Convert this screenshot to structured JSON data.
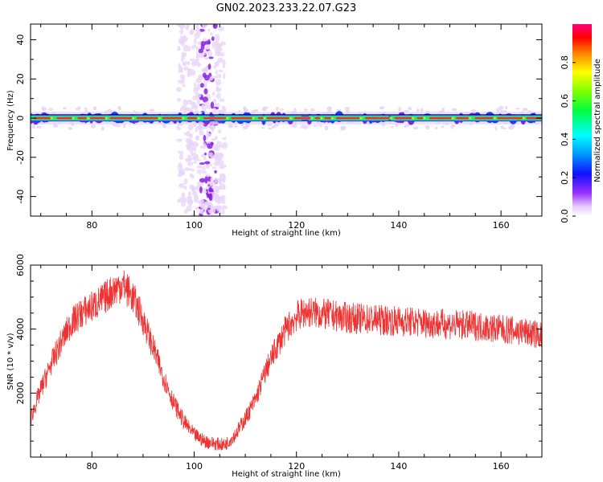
{
  "title": "GN02.2023.233.22.07.G23",
  "chart_data": [
    {
      "type": "heatmap",
      "xlabel": "Height of straight line (km)",
      "ylabel": "Frequency (Hz)",
      "xlim": [
        68,
        168
      ],
      "ylim": [
        -50,
        48
      ],
      "x_ticks": [
        80,
        100,
        120,
        140,
        160
      ],
      "y_ticks": [
        -40,
        -20,
        0,
        20,
        40
      ],
      "colorbar": {
        "label": "Normalized spectral amplitude",
        "ticks": [
          0.0,
          0.2,
          0.4,
          0.6,
          0.8
        ],
        "range": [
          0,
          1
        ]
      },
      "main_band": {
        "frequency_hz": 0,
        "amplitude_peak": 0.9
      },
      "broadband_burst": {
        "x_range_km": [
          97,
          106
        ],
        "frequency_range_hz": [
          -50,
          48
        ]
      },
      "colors": {
        "low": "#e8d6f7",
        "mid_purple": "#8a22e0",
        "blue": "#1c3fff",
        "cyan": "#00e5e5",
        "green": "#3ee53e",
        "yellow": "#e5e500",
        "red": "#ff2a2a"
      }
    },
    {
      "type": "line",
      "xlabel": "Height of straight line (km)",
      "ylabel": "SNR (10 * v/v)",
      "xlim": [
        68,
        168
      ],
      "ylim": [
        0,
        6000
      ],
      "x_ticks": [
        80,
        100,
        120,
        140,
        160
      ],
      "y_ticks": [
        2000,
        4000,
        6000
      ],
      "series": [
        {
          "color": "#ee3333",
          "x": [
            68,
            70,
            72,
            74,
            76,
            78,
            80,
            82,
            84,
            86,
            88,
            90,
            92,
            94,
            96,
            98,
            100,
            102,
            104,
            106,
            108,
            110,
            112,
            114,
            116,
            118,
            120,
            122,
            124,
            126,
            128,
            130,
            135,
            140,
            145,
            150,
            155,
            160,
            165,
            168
          ],
          "y": [
            1200,
            2100,
            2900,
            3600,
            4200,
            4500,
            4700,
            4900,
            5200,
            5400,
            5000,
            4300,
            3400,
            2500,
            1700,
            1100,
            700,
            500,
            420,
            380,
            700,
            1200,
            1800,
            2700,
            3400,
            4000,
            4400,
            4550,
            4500,
            4450,
            4400,
            4350,
            4300,
            4250,
            4200,
            4150,
            4100,
            4000,
            3900,
            3800
          ]
        }
      ]
    }
  ]
}
